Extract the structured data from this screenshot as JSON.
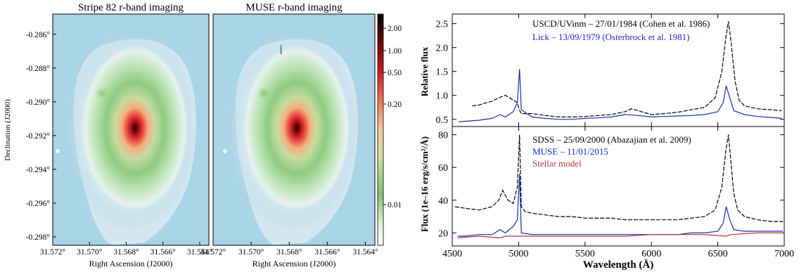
{
  "chart_data": [
    {
      "type": "heatmap",
      "title": "Stripe 82 r-band imaging",
      "xlabel": "Right Ascension (J2000)",
      "ylabel": "Declination (J2000)",
      "x_ticks": [
        "31.572°",
        "31.570°",
        "31.568°",
        "31.566°",
        "31.564°"
      ],
      "y_ticks": [
        "-0.286°",
        "-0.288°",
        "-0.290°",
        "-0.292°",
        "-0.294°",
        "-0.296°",
        "-0.298°"
      ],
      "xlim": [
        31.572,
        31.5635
      ],
      "ylim": [
        -0.2985,
        -0.2848
      ]
    },
    {
      "type": "heatmap",
      "title": "MUSE r-band imaging",
      "xlabel": "Right Ascension (J2000)",
      "x_ticks": [
        "31.572°",
        "31.570°",
        "31.568°",
        "31.566°",
        "31.564°"
      ],
      "xlim": [
        31.572,
        31.5635
      ],
      "colorbar_ticks": [
        "2.00",
        "1.00",
        "0.50",
        "0.20",
        "0.01"
      ]
    },
    {
      "type": "line",
      "ylabel": "Relative flux",
      "xlim": [
        4500,
        7000
      ],
      "ylim": [
        0.35,
        2.7
      ],
      "y_ticks": [
        "0.5",
        "1.0",
        "1.5",
        "2.0",
        "2.5"
      ],
      "series": [
        {
          "name": "USCD/UVinm – 27/01/1984 (Cohen et al. 1986)",
          "color": "#000000",
          "dash": true,
          "x": [
            4650,
            4700,
            4750,
            4800,
            4850,
            4900,
            4950,
            4990,
            5005,
            5020,
            5100,
            5200,
            5300,
            5400,
            5500,
            5600,
            5700,
            5800,
            5850,
            5900,
            6000,
            6100,
            6200,
            6300,
            6400,
            6480,
            6530,
            6560,
            6580,
            6600,
            6630,
            6660,
            6700,
            6800,
            6900,
            6980
          ],
          "y": [
            0.78,
            0.8,
            0.84,
            0.88,
            0.95,
            1.0,
            0.92,
            0.85,
            0.7,
            0.62,
            0.62,
            0.58,
            0.55,
            0.55,
            0.56,
            0.58,
            0.6,
            0.66,
            0.72,
            0.68,
            0.6,
            0.62,
            0.65,
            0.7,
            0.75,
            0.95,
            1.5,
            2.2,
            2.55,
            2.1,
            1.3,
            0.9,
            0.78,
            0.72,
            0.7,
            0.68
          ]
        },
        {
          "name": "Lick – 13/09/1979 (Osterbrock et al. 1981)",
          "color": "#1a2bb0",
          "dash": false,
          "x": [
            4550,
            4600,
            4700,
            4800,
            4860,
            4900,
            4960,
            4990,
            5007,
            5020,
            5100,
            5200,
            5300,
            5400,
            5500,
            5600,
            5700,
            5800,
            5900,
            6000,
            6100,
            6200,
            6300,
            6400,
            6500,
            6540,
            6563,
            6590,
            6620,
            6700,
            6800,
            6900,
            6980
          ],
          "y": [
            0.45,
            0.46,
            0.48,
            0.52,
            0.6,
            0.55,
            0.66,
            0.85,
            1.55,
            0.7,
            0.55,
            0.52,
            0.5,
            0.5,
            0.52,
            0.53,
            0.55,
            0.6,
            0.58,
            0.55,
            0.56,
            0.57,
            0.58,
            0.6,
            0.66,
            0.85,
            1.2,
            0.95,
            0.68,
            0.6,
            0.56,
            0.54,
            0.52
          ]
        }
      ]
    },
    {
      "type": "line",
      "xlabel": "Wavelength (Å)",
      "ylabel": "Flux (1e–16 erg/s/cm²/Å)",
      "xlim": [
        4500,
        7000
      ],
      "ylim": [
        12,
        85
      ],
      "y_ticks": [
        "20",
        "40",
        "60",
        "80"
      ],
      "x_ticks": [
        "4500",
        "5000",
        "5500",
        "6000",
        "6500",
        "7000"
      ],
      "series": [
        {
          "name": "SDSS – 25/09/2000 (Abazajian et al. 2009)",
          "color": "#000000",
          "dash": true,
          "x": [
            4520,
            4600,
            4700,
            4800,
            4850,
            4880,
            4920,
            4960,
            4990,
            5007,
            5020,
            5050,
            5100,
            5200,
            5300,
            5400,
            5500,
            5600,
            5700,
            5800,
            5900,
            6000,
            6100,
            6200,
            6300,
            6400,
            6480,
            6530,
            6560,
            6580,
            6600,
            6620,
            6650,
            6700,
            6800,
            6900,
            6990
          ],
          "y": [
            36,
            35,
            34,
            36,
            40,
            46,
            40,
            38,
            48,
            80,
            36,
            33,
            32,
            31,
            30,
            30,
            29,
            29,
            29,
            28,
            28,
            28,
            28,
            28,
            29,
            30,
            34,
            48,
            70,
            80,
            62,
            44,
            34,
            30,
            28,
            27,
            27
          ]
        },
        {
          "name": "MUSE – 11/01/2015",
          "color": "#1a2bb0",
          "dash": false,
          "x": [
            4540,
            4600,
            4700,
            4800,
            4860,
            4900,
            4960,
            4990,
            5007,
            5020,
            5100,
            5200,
            5300,
            5400,
            5500,
            5600,
            5700,
            5800,
            5900,
            6000,
            6100,
            6200,
            6300,
            6400,
            6500,
            6540,
            6563,
            6590,
            6620,
            6700,
            6800,
            6900,
            6990
          ],
          "y": [
            18,
            18,
            19,
            19,
            22,
            20,
            24,
            28,
            56,
            20,
            19,
            19,
            19,
            19,
            19,
            19,
            19,
            19,
            19,
            19,
            19,
            19,
            20,
            20,
            21,
            26,
            36,
            28,
            22,
            21,
            21,
            21,
            21
          ]
        },
        {
          "name": "Stellar model",
          "color": "#b3343a",
          "dash": false,
          "x": [
            4540,
            4700,
            4860,
            4900,
            5000,
            5200,
            5400,
            5600,
            5800,
            6000,
            6200,
            6400,
            6563,
            6600,
            6800,
            6990
          ],
          "y": [
            17,
            18,
            17,
            18,
            18,
            18,
            18,
            18,
            18,
            19,
            19,
            19,
            18,
            19,
            20,
            20
          ]
        }
      ]
    }
  ]
}
